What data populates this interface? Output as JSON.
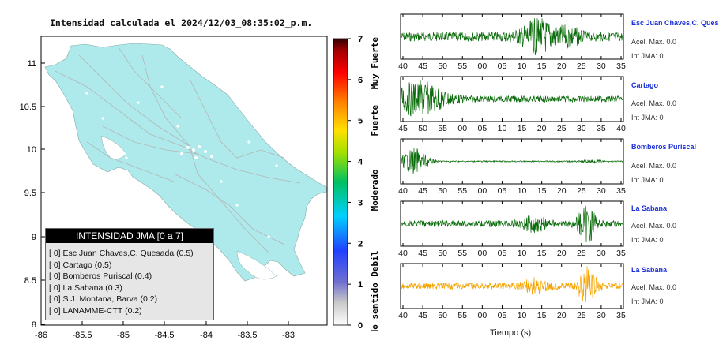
{
  "map": {
    "title": "Intensidad calculada el 2024/12/03_08:35:02_p.m.",
    "y_ticks": [
      "11",
      "10.5",
      "10",
      "9.5",
      "9",
      "8.5",
      "8"
    ],
    "x_ticks": [
      "-86",
      "-85.5",
      "-85",
      "-84.5",
      "-84",
      "-83.5",
      "-83"
    ]
  },
  "colorbar": {
    "ticks": [
      "0",
      "1",
      "2",
      "3",
      "4",
      "5",
      "6",
      "7"
    ],
    "labels": [
      "No sentido",
      "Debil",
      "Moderado",
      "Fuerte",
      "Muy Fuerte"
    ]
  },
  "legend": {
    "title": "INTENSIDAD JMA [0 a 7]",
    "items": [
      "[ 0]  Esc Juan Chaves,C. Quesada (0.5)",
      "[ 0]  Cartago (0.5)",
      "[ 0]  Bomberos Puriscal (0.4)",
      "[ 0]  La Sabana (0.3)",
      "[ 0]  S.J. Montana, Barva (0.2)",
      "[ 0]  LANAMME-CTT (0.2)"
    ]
  },
  "panels": [
    {
      "station": "Esc Juan Chaves,C. Quesada",
      "accel": "Acel. Max. 0.0",
      "int": "Int JMA: 0",
      "color": "#0a6b0a",
      "ticks": [
        "40",
        "45",
        "50",
        "55",
        "00",
        "05",
        "10",
        "15",
        "20",
        "25",
        "30",
        "35"
      ]
    },
    {
      "station": "Cartago",
      "accel": "Acel. Max. 0.0",
      "int": "Int JMA: 0",
      "color": "#0a6b0a",
      "ticks": [
        "45",
        "50",
        "55",
        "00",
        "05",
        "10",
        "15",
        "20",
        "25",
        "30",
        "35",
        "40"
      ]
    },
    {
      "station": "Bomberos Puriscal",
      "accel": "Acel. Max. 0.0",
      "int": "Int JMA: 0",
      "color": "#0a6b0a",
      "ticks": [
        "40",
        "45",
        "50",
        "55",
        "00",
        "05",
        "10",
        "15",
        "20",
        "25",
        "30",
        "35"
      ]
    },
    {
      "station": "La Sabana",
      "accel": "Acel. Max. 0.0",
      "int": "Int JMA: 0",
      "color": "#0a6b0a",
      "ticks": [
        "40",
        "45",
        "50",
        "55",
        "00",
        "05",
        "10",
        "15",
        "20",
        "25",
        "30",
        "35"
      ]
    },
    {
      "station": "La Sabana",
      "accel": "Acel. Max. 0.0",
      "int": "Int JMA: 0",
      "color": "#f5a300",
      "ticks": [
        "40",
        "45",
        "50",
        "55",
        "00",
        "05",
        "10",
        "15",
        "20",
        "25",
        "30",
        "35"
      ]
    }
  ],
  "xlabel": "Tiempo (s)"
}
